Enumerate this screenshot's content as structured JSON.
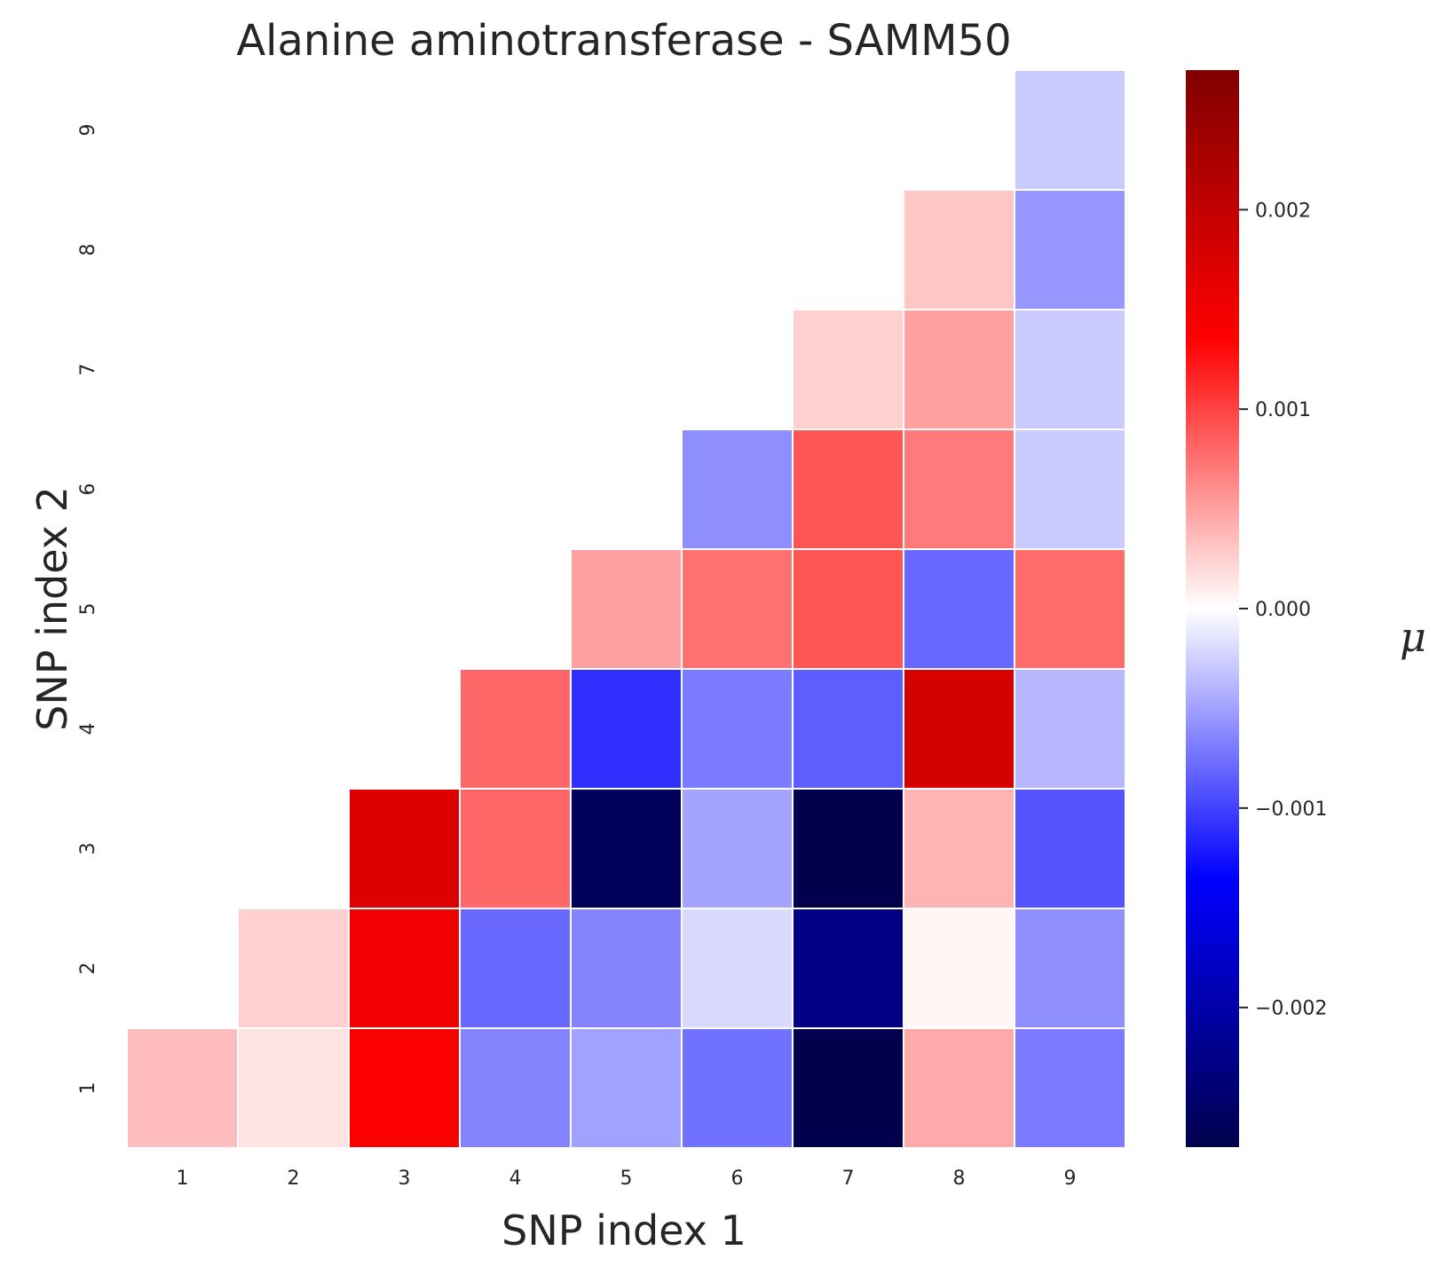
{
  "chart_data": {
    "type": "heatmap",
    "title": "Alanine aminotransferase - SAMM50",
    "xlabel": "SNP index 1",
    "ylabel": "SNP index 2",
    "x_categories": [
      "1",
      "2",
      "3",
      "4",
      "5",
      "6",
      "7",
      "8",
      "9"
    ],
    "y_categories": [
      "1",
      "2",
      "3",
      "4",
      "5",
      "6",
      "7",
      "8",
      "9"
    ],
    "colorbar": {
      "label": "μ",
      "colormap": "seismic",
      "vmin": -0.0027,
      "vmax": 0.0027,
      "ticks": [
        0.002,
        0.001,
        0.0,
        -0.001,
        -0.002
      ],
      "tick_labels": [
        "0.002",
        "0.001",
        "0.000",
        "−0.001",
        "−0.002"
      ]
    },
    "cells": [
      {
        "x": 1,
        "y": 1,
        "value": 0.00035
      },
      {
        "x": 2,
        "y": 1,
        "value": 0.00015
      },
      {
        "x": 3,
        "y": 1,
        "value": 0.0014
      },
      {
        "x": 4,
        "y": 1,
        "value": -0.00065
      },
      {
        "x": 5,
        "y": 1,
        "value": -0.0005
      },
      {
        "x": 6,
        "y": 1,
        "value": -0.00075
      },
      {
        "x": 7,
        "y": 1,
        "value": -0.0027
      },
      {
        "x": 8,
        "y": 1,
        "value": 0.00045
      },
      {
        "x": 9,
        "y": 1,
        "value": -0.0007
      },
      {
        "x": 2,
        "y": 2,
        "value": 0.00025
      },
      {
        "x": 3,
        "y": 2,
        "value": 0.0015
      },
      {
        "x": 4,
        "y": 2,
        "value": -0.0008
      },
      {
        "x": 5,
        "y": 2,
        "value": -0.00065
      },
      {
        "x": 6,
        "y": 2,
        "value": -0.0002
      },
      {
        "x": 7,
        "y": 2,
        "value": -0.0023
      },
      {
        "x": 8,
        "y": 2,
        "value": 5e-05
      },
      {
        "x": 9,
        "y": 2,
        "value": -0.0006
      },
      {
        "x": 3,
        "y": 3,
        "value": 0.0017
      },
      {
        "x": 4,
        "y": 3,
        "value": 0.0008
      },
      {
        "x": 5,
        "y": 3,
        "value": -0.0026
      },
      {
        "x": 6,
        "y": 3,
        "value": -0.00048
      },
      {
        "x": 7,
        "y": 3,
        "value": -0.0027
      },
      {
        "x": 8,
        "y": 3,
        "value": 0.0004
      },
      {
        "x": 9,
        "y": 3,
        "value": -0.0009
      },
      {
        "x": 4,
        "y": 4,
        "value": 0.0008
      },
      {
        "x": 5,
        "y": 4,
        "value": -0.0011
      },
      {
        "x": 6,
        "y": 4,
        "value": -0.0007
      },
      {
        "x": 7,
        "y": 4,
        "value": -0.00085
      },
      {
        "x": 8,
        "y": 4,
        "value": 0.0018
      },
      {
        "x": 9,
        "y": 4,
        "value": -0.00038
      },
      {
        "x": 5,
        "y": 5,
        "value": 0.0005
      },
      {
        "x": 6,
        "y": 5,
        "value": 0.00075
      },
      {
        "x": 7,
        "y": 5,
        "value": 0.0009
      },
      {
        "x": 8,
        "y": 5,
        "value": -0.0008
      },
      {
        "x": 9,
        "y": 5,
        "value": 0.00078
      },
      {
        "x": 6,
        "y": 6,
        "value": -0.0006
      },
      {
        "x": 7,
        "y": 6,
        "value": 0.0009
      },
      {
        "x": 8,
        "y": 6,
        "value": 0.0007
      },
      {
        "x": 9,
        "y": 6,
        "value": -0.00028
      },
      {
        "x": 7,
        "y": 7,
        "value": 0.00025
      },
      {
        "x": 8,
        "y": 7,
        "value": 0.0005
      },
      {
        "x": 9,
        "y": 7,
        "value": -0.00028
      },
      {
        "x": 8,
        "y": 8,
        "value": 0.0003
      },
      {
        "x": 9,
        "y": 8,
        "value": -0.00055
      },
      {
        "x": 9,
        "y": 9,
        "value": -0.00028
      }
    ]
  }
}
